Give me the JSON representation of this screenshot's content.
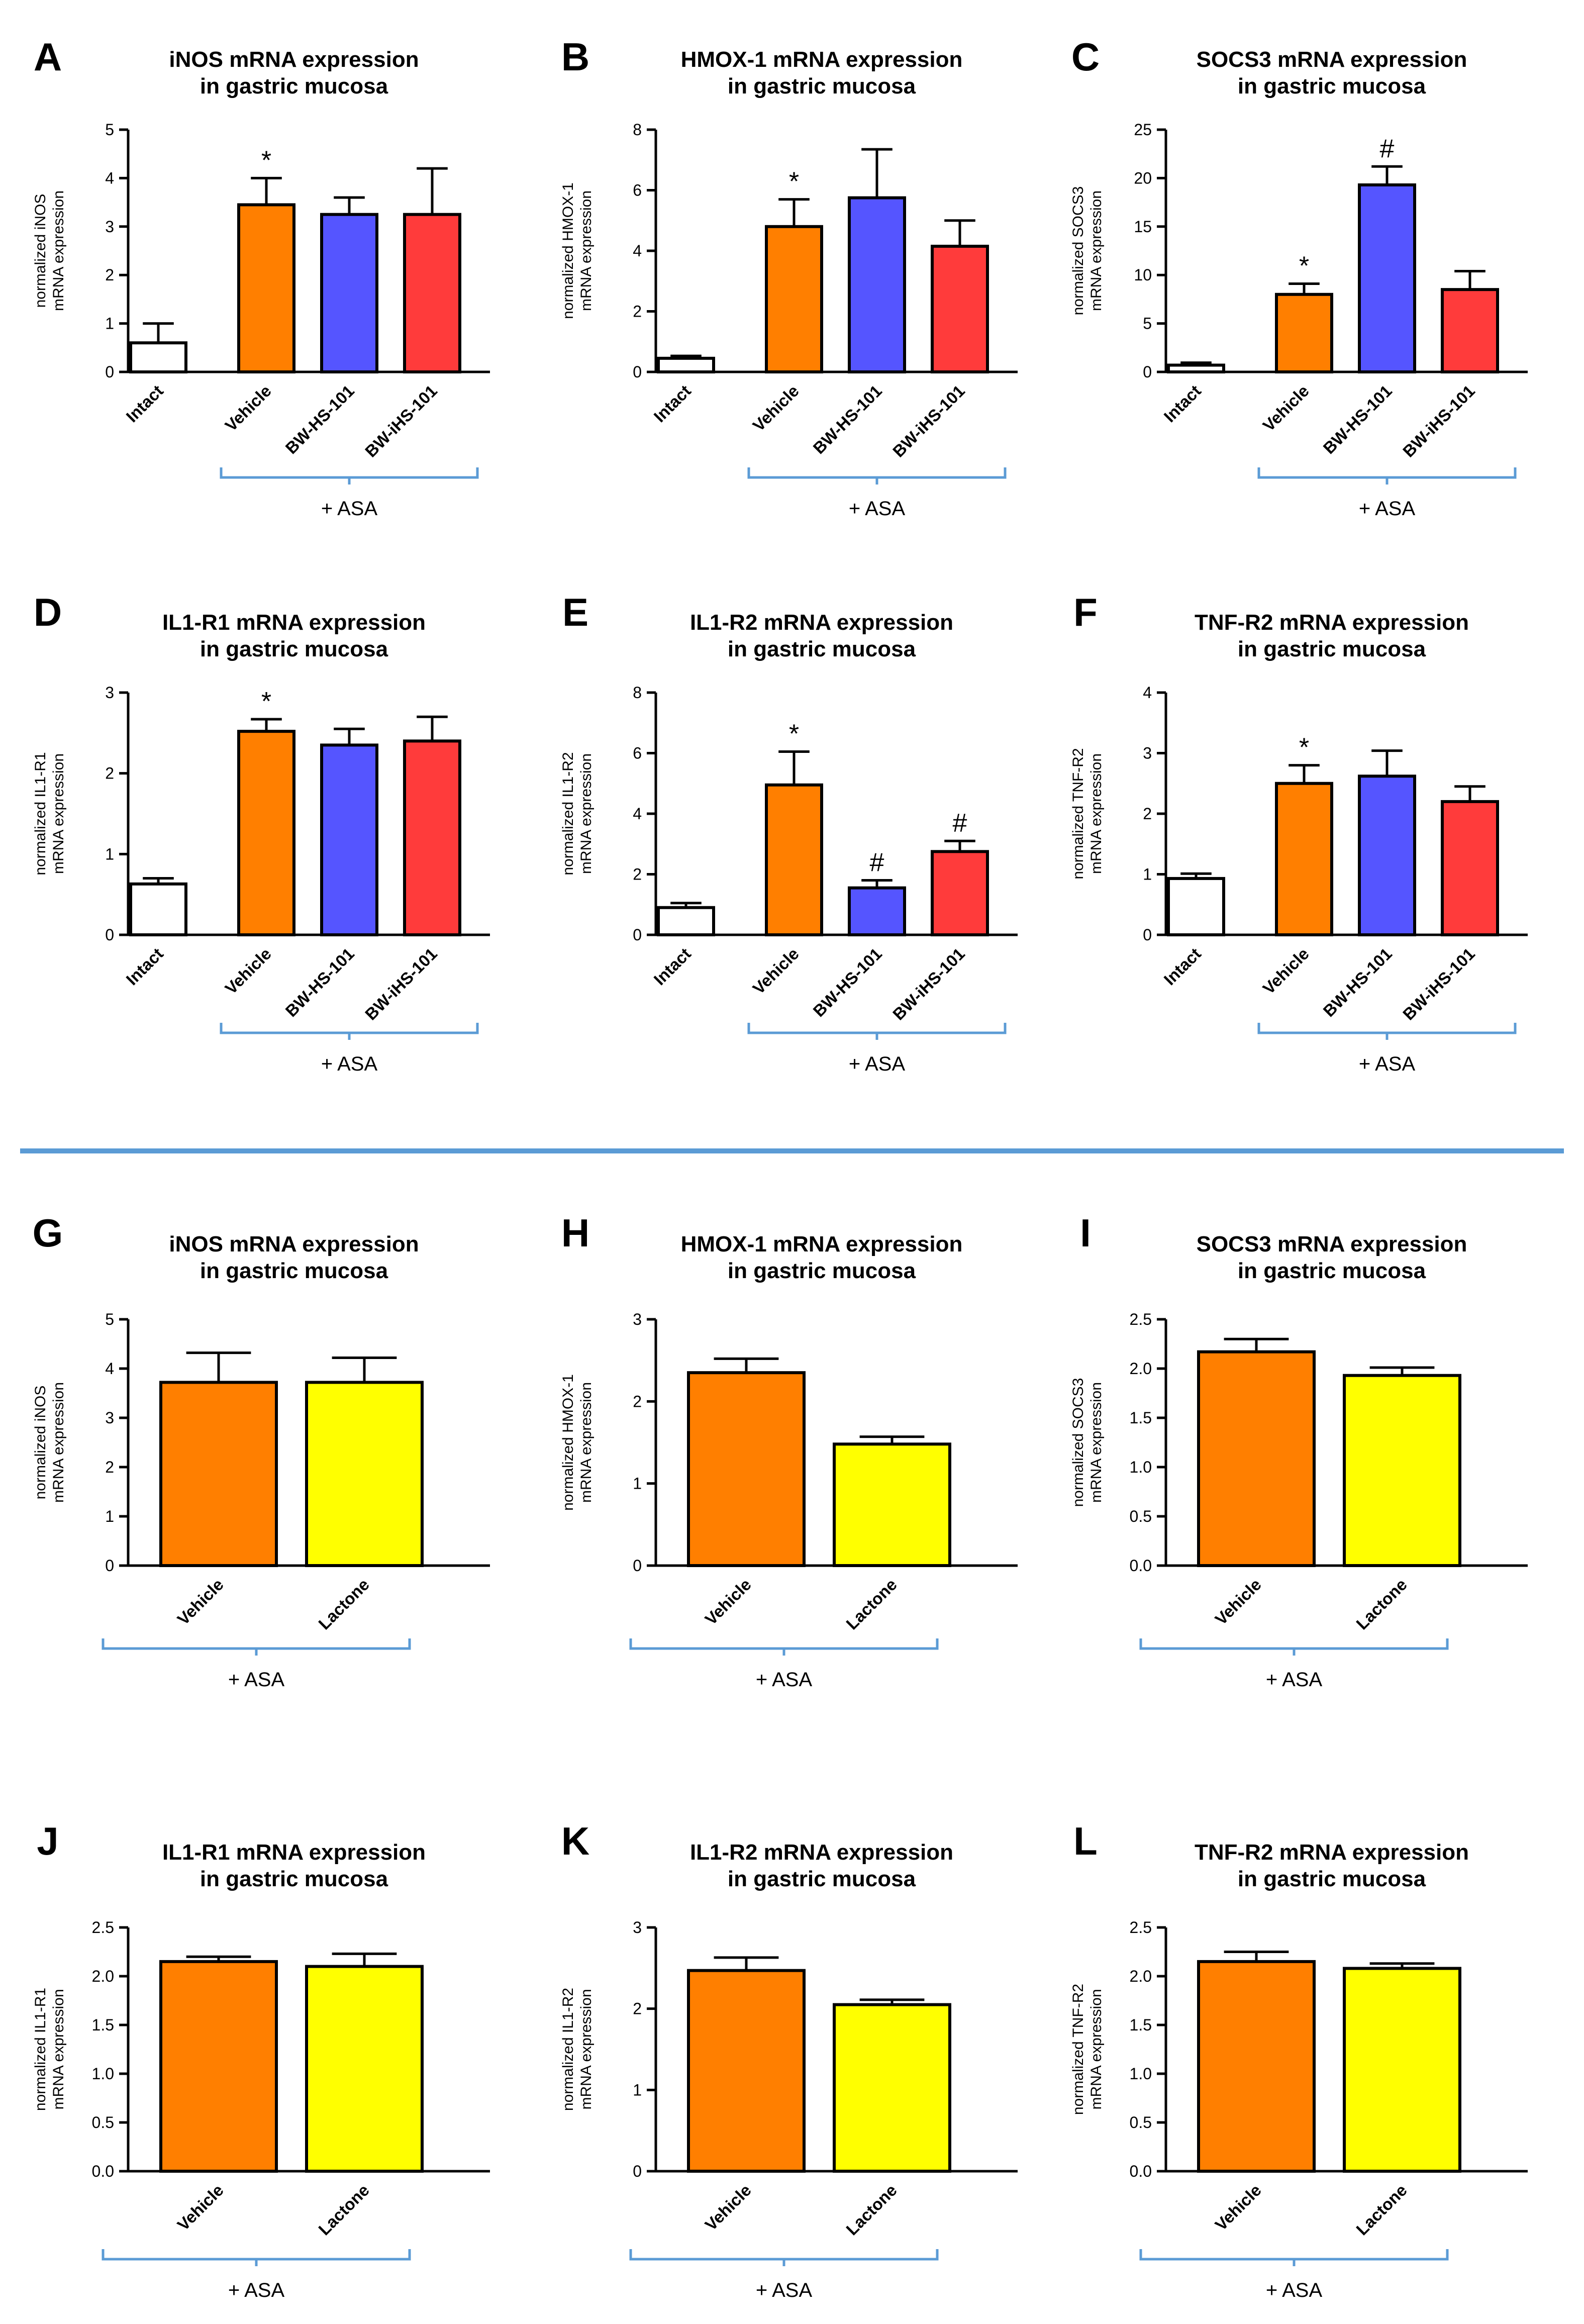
{
  "colors": {
    "Intact": "#ffffff",
    "Vehicle": "#ff7f00",
    "BW-HS-101": "#5555ff",
    "BW-iHS-101": "#ff3b3b",
    "Lactone": "#ffff00",
    "bracket": "#5b9bd5",
    "divider": "#5b9bd5"
  },
  "chart_data": [
    {
      "letter": "A",
      "type": "bar",
      "title": [
        "iNOS mRNA expression",
        "in gastric mucosa"
      ],
      "ylabel": [
        "normalized iNOS",
        "mRNA expression"
      ],
      "yticks": [
        "0",
        "1",
        "2",
        "3",
        "4",
        "5"
      ],
      "ylim": [
        0,
        5
      ],
      "categories": [
        "Intact",
        "Vehicle",
        "BW-HS-101",
        "BW-iHS-101"
      ],
      "values": [
        0.6,
        3.45,
        3.25,
        3.25
      ],
      "errors": [
        0.4,
        0.55,
        0.35,
        0.95
      ],
      "annotations": [
        "",
        "*",
        "",
        ""
      ],
      "group_label": "+ ASA"
    },
    {
      "letter": "B",
      "type": "bar",
      "title": [
        "HMOX-1 mRNA expression",
        "in gastric mucosa"
      ],
      "ylabel": [
        "normalized HMOX-1",
        "mRNA expression"
      ],
      "yticks": [
        "0",
        "2",
        "4",
        "6",
        "8"
      ],
      "ylim": [
        0,
        8
      ],
      "categories": [
        "Intact",
        "Vehicle",
        "BW-HS-101",
        "BW-iHS-101"
      ],
      "values": [
        0.45,
        4.8,
        5.75,
        4.15
      ],
      "errors": [
        0.08,
        0.9,
        1.6,
        0.85
      ],
      "annotations": [
        "",
        "*",
        "",
        ""
      ],
      "group_label": "+ ASA"
    },
    {
      "letter": "C",
      "type": "bar",
      "title": [
        "SOCS3 mRNA expression",
        "in gastric mucosa"
      ],
      "ylabel": [
        "normalized SOCS3",
        "mRNA expression"
      ],
      "yticks": [
        "0",
        "5",
        "10",
        "15",
        "20",
        "25"
      ],
      "ylim": [
        0,
        25
      ],
      "categories": [
        "Intact",
        "Vehicle",
        "BW-HS-101",
        "BW-iHS-101"
      ],
      "values": [
        0.7,
        8.0,
        19.3,
        8.5
      ],
      "errors": [
        0.25,
        1.1,
        1.9,
        1.9
      ],
      "annotations": [
        "",
        "*",
        "#",
        ""
      ],
      "group_label": "+ ASA"
    },
    {
      "letter": "D",
      "type": "bar",
      "title": [
        "IL1-R1 mRNA expression",
        "in gastric mucosa"
      ],
      "ylabel": [
        "normalized IL1-R1",
        "mRNA expression"
      ],
      "yticks": [
        "0",
        "1",
        "2",
        "3"
      ],
      "ylim": [
        0,
        3
      ],
      "categories": [
        "Intact",
        "Vehicle",
        "BW-HS-101",
        "BW-iHS-101"
      ],
      "values": [
        0.63,
        2.52,
        2.35,
        2.4
      ],
      "errors": [
        0.07,
        0.15,
        0.2,
        0.3
      ],
      "annotations": [
        "",
        "*",
        "",
        ""
      ],
      "group_label": "+ ASA"
    },
    {
      "letter": "E",
      "type": "bar",
      "title": [
        "IL1-R2 mRNA expression",
        "in gastric mucosa"
      ],
      "ylabel": [
        "normalized IL1-R2",
        "mRNA expression"
      ],
      "yticks": [
        "0",
        "2",
        "4",
        "6",
        "8"
      ],
      "ylim": [
        0,
        8
      ],
      "categories": [
        "Intact",
        "Vehicle",
        "BW-HS-101",
        "BW-iHS-101"
      ],
      "values": [
        0.9,
        4.95,
        1.55,
        2.75
      ],
      "errors": [
        0.15,
        1.1,
        0.25,
        0.35
      ],
      "annotations": [
        "",
        "*",
        "#",
        "#"
      ],
      "group_label": "+ ASA"
    },
    {
      "letter": "F",
      "type": "bar",
      "title": [
        "TNF-R2 mRNA expression",
        "in gastric mucosa"
      ],
      "ylabel": [
        "normalized TNF-R2",
        "mRNA expression"
      ],
      "yticks": [
        "0",
        "1",
        "2",
        "3",
        "4"
      ],
      "ylim": [
        0,
        4
      ],
      "categories": [
        "Intact",
        "Vehicle",
        "BW-HS-101",
        "BW-iHS-101"
      ],
      "values": [
        0.93,
        2.5,
        2.62,
        2.2
      ],
      "errors": [
        0.08,
        0.3,
        0.42,
        0.25
      ],
      "annotations": [
        "",
        "*",
        "",
        ""
      ],
      "group_label": "+ ASA"
    },
    {
      "letter": "G",
      "type": "bar",
      "title": [
        "iNOS mRNA expression",
        "in gastric mucosa"
      ],
      "ylabel": [
        "normalized iNOS",
        "mRNA expression"
      ],
      "yticks": [
        "0",
        "1",
        "2",
        "3",
        "4",
        "5"
      ],
      "ylim": [
        0,
        5
      ],
      "categories": [
        "Vehicle",
        "Lactone"
      ],
      "values": [
        3.72,
        3.72
      ],
      "errors": [
        0.6,
        0.5
      ],
      "annotations": [
        "",
        ""
      ],
      "group_label": "+ ASA"
    },
    {
      "letter": "H",
      "type": "bar",
      "title": [
        "HMOX-1 mRNA expression",
        "in gastric mucosa"
      ],
      "ylabel": [
        "normalized HMOX-1",
        "mRNA expression"
      ],
      "yticks": [
        "0",
        "1",
        "2",
        "3"
      ],
      "ylim": [
        0,
        3
      ],
      "categories": [
        "Vehicle",
        "Lactone"
      ],
      "values": [
        2.35,
        1.48
      ],
      "errors": [
        0.17,
        0.09
      ],
      "annotations": [
        "",
        ""
      ],
      "group_label": "+ ASA"
    },
    {
      "letter": "I",
      "type": "bar",
      "title": [
        "SOCS3 mRNA expression",
        "in gastric mucosa"
      ],
      "ylabel": [
        "normalized SOCS3",
        "mRNA expression"
      ],
      "yticks": [
        "0.0",
        "0.5",
        "1.0",
        "1.5",
        "2.0",
        "2.5"
      ],
      "ylim": [
        0,
        2.5
      ],
      "categories": [
        "Vehicle",
        "Lactone"
      ],
      "values": [
        2.17,
        1.93
      ],
      "errors": [
        0.13,
        0.08
      ],
      "annotations": [
        "",
        ""
      ],
      "group_label": "+ ASA"
    },
    {
      "letter": "J",
      "type": "bar",
      "title": [
        "IL1-R1 mRNA expression",
        "in gastric mucosa"
      ],
      "ylabel": [
        "normalized IL1-R1",
        "mRNA expression"
      ],
      "yticks": [
        "0.0",
        "0.5",
        "1.0",
        "1.5",
        "2.0",
        "2.5"
      ],
      "ylim": [
        0,
        2.5
      ],
      "categories": [
        "Vehicle",
        "Lactone"
      ],
      "values": [
        2.15,
        2.1
      ],
      "errors": [
        0.05,
        0.13
      ],
      "annotations": [
        "",
        ""
      ],
      "group_label": "+ ASA"
    },
    {
      "letter": "K",
      "type": "bar",
      "title": [
        "IL1-R2 mRNA expression",
        "in gastric mucosa"
      ],
      "ylabel": [
        "normalized IL1-R2",
        "mRNA expression"
      ],
      "yticks": [
        "0",
        "1",
        "2",
        "3"
      ],
      "ylim": [
        0,
        3
      ],
      "categories": [
        "Vehicle",
        "Lactone"
      ],
      "values": [
        2.47,
        2.05
      ],
      "errors": [
        0.16,
        0.06
      ],
      "annotations": [
        "",
        ""
      ],
      "group_label": "+ ASA"
    },
    {
      "letter": "L",
      "type": "bar",
      "title": [
        "TNF-R2 mRNA expression",
        "in gastric mucosa"
      ],
      "ylabel": [
        "normalized TNF-R2",
        "mRNA expression"
      ],
      "yticks": [
        "0.0",
        "0.5",
        "1.0",
        "1.5",
        "2.0",
        "2.5"
      ],
      "ylim": [
        0,
        2.5
      ],
      "categories": [
        "Vehicle",
        "Lactone"
      ],
      "values": [
        2.15,
        2.08
      ],
      "errors": [
        0.1,
        0.05
      ],
      "annotations": [
        "",
        ""
      ],
      "group_label": "+ ASA"
    }
  ]
}
